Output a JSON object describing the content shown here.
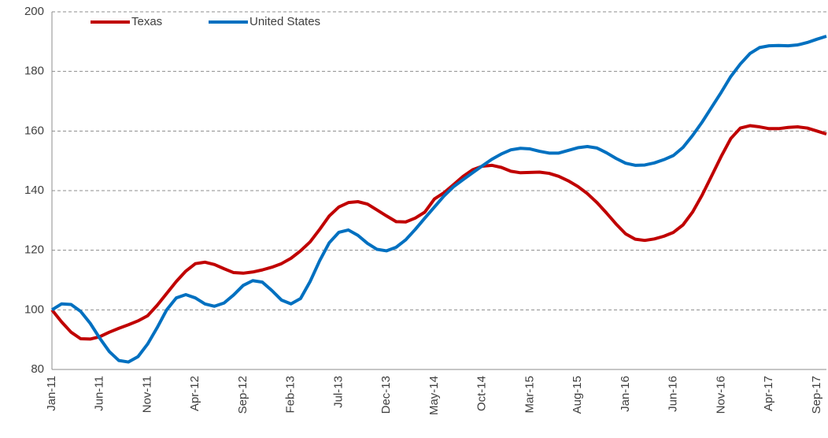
{
  "chart_data": {
    "type": "line",
    "categories": [
      "Jan-11",
      null,
      null,
      null,
      null,
      "Jun-11",
      null,
      null,
      null,
      null,
      "Nov-11",
      null,
      null,
      null,
      null,
      "Apr-12",
      null,
      null,
      null,
      null,
      "Sep-12",
      null,
      null,
      null,
      null,
      "Feb-13",
      null,
      null,
      null,
      null,
      "Jul-13",
      null,
      null,
      null,
      null,
      "Dec-13",
      null,
      null,
      null,
      null,
      "May-14",
      null,
      null,
      null,
      null,
      "Oct-14",
      null,
      null,
      null,
      null,
      "Mar-15",
      null,
      null,
      null,
      null,
      "Aug-15",
      null,
      null,
      null,
      null,
      "Jan-16",
      null,
      null,
      null,
      null,
      "Jun-16",
      null,
      null,
      null,
      null,
      "Nov-16",
      null,
      null,
      null,
      null,
      "Apr-17",
      null,
      null,
      null,
      null,
      "Sep-17",
      null
    ],
    "series": [
      {
        "name": "Texas",
        "color": "#c00000",
        "values": [
          100,
          96,
          92.5,
          90.3,
          90.2,
          91,
          92.5,
          93.8,
          95,
          96.3,
          98,
          101.5,
          105.5,
          109.5,
          113,
          115.5,
          116,
          115.2,
          113.8,
          112.5,
          112.3,
          112.7,
          113.4,
          114.3,
          115.5,
          117.3,
          119.8,
          122.8,
          127,
          131.5,
          134.5,
          136,
          136.3,
          135.5,
          133.5,
          131.5,
          129.6,
          129.5,
          130.8,
          132.8,
          137.2,
          139.3,
          142,
          144.8,
          147,
          148.2,
          148.5,
          147.8,
          146.5,
          146,
          146.1,
          146.2,
          145.8,
          144.8,
          143.3,
          141.4,
          139,
          136,
          132.5,
          128.8,
          125.5,
          123.7,
          123.3,
          123.8,
          124.7,
          126,
          128.5,
          132.8,
          138.5,
          145,
          151.5,
          157.5,
          161,
          161.8,
          161.4,
          160.8,
          160.8,
          161.2,
          161.4,
          161,
          160,
          159
        ]
      },
      {
        "name": "United States",
        "color": "#0070c0",
        "values": [
          100,
          102,
          101.8,
          99.5,
          95.5,
          90.5,
          86,
          83,
          82.5,
          84.3,
          88.5,
          94,
          100,
          104,
          105.1,
          104,
          102,
          101.2,
          102.3,
          105,
          108.2,
          109.8,
          109.3,
          106.5,
          103.3,
          102,
          103.8,
          109.5,
          116.5,
          122.5,
          126,
          126.8,
          125,
          122.3,
          120.3,
          119.8,
          121,
          123.5,
          127,
          130.8,
          134.5,
          138.2,
          141.3,
          143.7,
          146,
          148.3,
          150.5,
          152.3,
          153.7,
          154.2,
          154,
          153.2,
          152.6,
          152.6,
          153.5,
          154.4,
          154.8,
          154.3,
          152.7,
          150.8,
          149.2,
          148.5,
          148.6,
          149.3,
          150.4,
          151.8,
          154.5,
          158.5,
          163,
          168,
          173,
          178.3,
          182.5,
          186,
          188,
          188.6,
          188.7,
          188.6,
          188.9,
          189.7,
          190.8,
          191.8
        ]
      }
    ],
    "ylim": [
      80,
      200
    ],
    "yticks": [
      80,
      100,
      120,
      140,
      160,
      180,
      200
    ],
    "grid": true
  }
}
